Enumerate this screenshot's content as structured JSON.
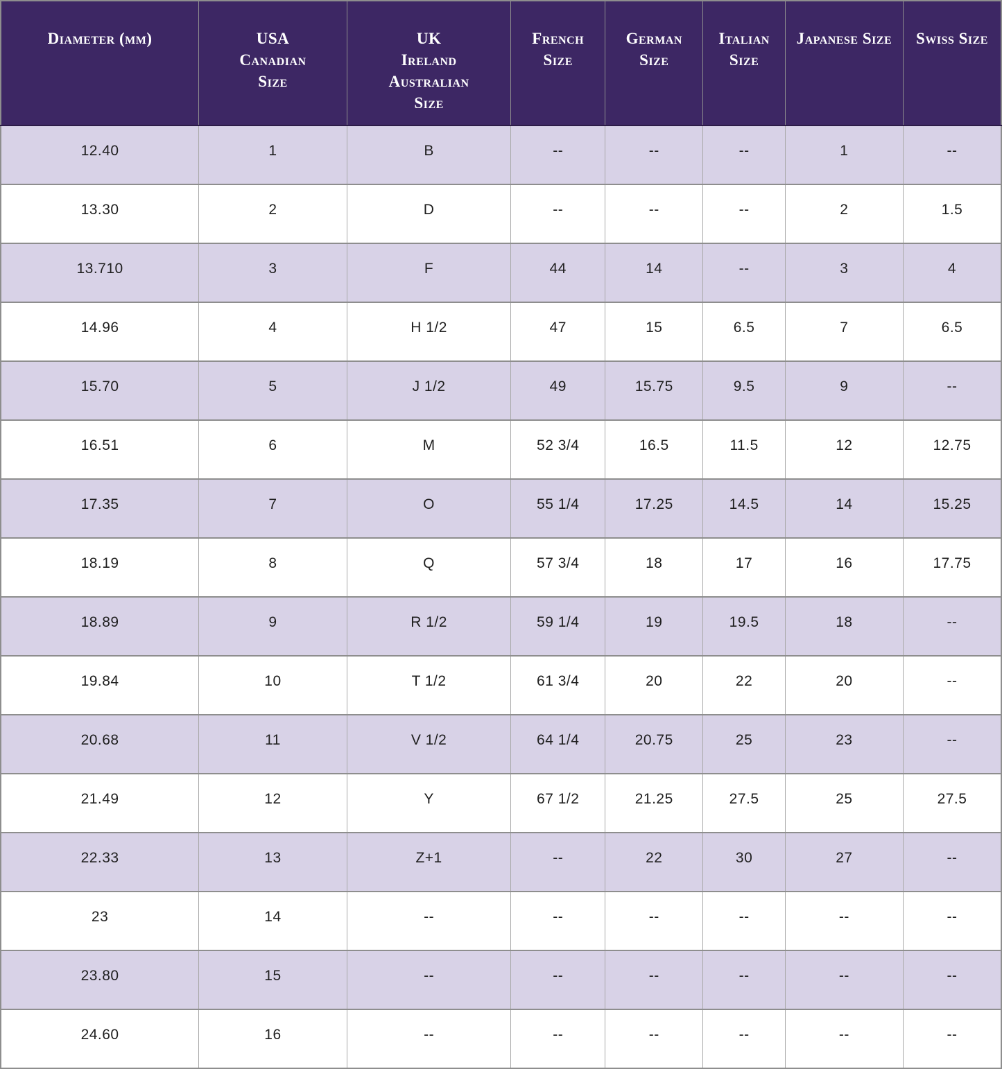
{
  "colors": {
    "header_background": "#3d2764",
    "header_text": "#ffffff",
    "row_alternate_background": "#d8d2e7",
    "row_background": "#ffffff",
    "grid_border": "#8e8e8e",
    "cell_text": "#1f1f1f"
  },
  "chart_data": {
    "type": "table",
    "column_keys": [
      "diameter-mm",
      "usa-canadian-size",
      "uk-ireland-australian-size",
      "french-size",
      "german-size",
      "italian-size",
      "japanese-size",
      "swiss-size"
    ],
    "columns": [
      "Diameter (mm)",
      "USA\nCanadian\nSize",
      "UK\nIreland\nAustralian\nSize",
      "French\nSize",
      "German\nSize",
      "Italian\nSize",
      "Japanese Size",
      "Swiss Size"
    ],
    "rows": [
      [
        "12.40",
        "1",
        "B",
        "--",
        "--",
        "--",
        "1",
        "--"
      ],
      [
        "13.30",
        "2",
        "D",
        "--",
        "--",
        "--",
        "2",
        "1.5"
      ],
      [
        "13.710",
        "3",
        "F",
        "44",
        "14",
        "--",
        "3",
        "4"
      ],
      [
        "14.96",
        "4",
        "H 1/2",
        "47",
        "15",
        "6.5",
        "7",
        "6.5"
      ],
      [
        "15.70",
        "5",
        "J 1/2",
        "49",
        "15.75",
        "9.5",
        "9",
        "--"
      ],
      [
        "16.51",
        "6",
        "M",
        "52 3/4",
        "16.5",
        "11.5",
        "12",
        "12.75"
      ],
      [
        "17.35",
        "7",
        "O",
        "55 1/4",
        "17.25",
        "14.5",
        "14",
        "15.25"
      ],
      [
        "18.19",
        "8",
        "Q",
        "57 3/4",
        "18",
        "17",
        "16",
        "17.75"
      ],
      [
        "18.89",
        "9",
        "R 1/2",
        "59 1/4",
        "19",
        "19.5",
        "18",
        "--"
      ],
      [
        "19.84",
        "10",
        "T 1/2",
        "61 3/4",
        "20",
        "22",
        "20",
        "--"
      ],
      [
        "20.68",
        "11",
        "V 1/2",
        "64 1/4",
        "20.75",
        "25",
        "23",
        "--"
      ],
      [
        "21.49",
        "12",
        "Y",
        "67 1/2",
        "21.25",
        "27.5",
        "25",
        "27.5"
      ],
      [
        "22.33",
        "13",
        "Z+1",
        "--",
        "22",
        "30",
        "27",
        "--"
      ],
      [
        "23",
        "14",
        "--",
        "--",
        "--",
        "--",
        "--",
        "--"
      ],
      [
        "23.80",
        "15",
        "--",
        "--",
        "--",
        "--",
        "--",
        "--"
      ],
      [
        "24.60",
        "16",
        "--",
        "--",
        "--",
        "--",
        "--",
        "--"
      ]
    ]
  }
}
